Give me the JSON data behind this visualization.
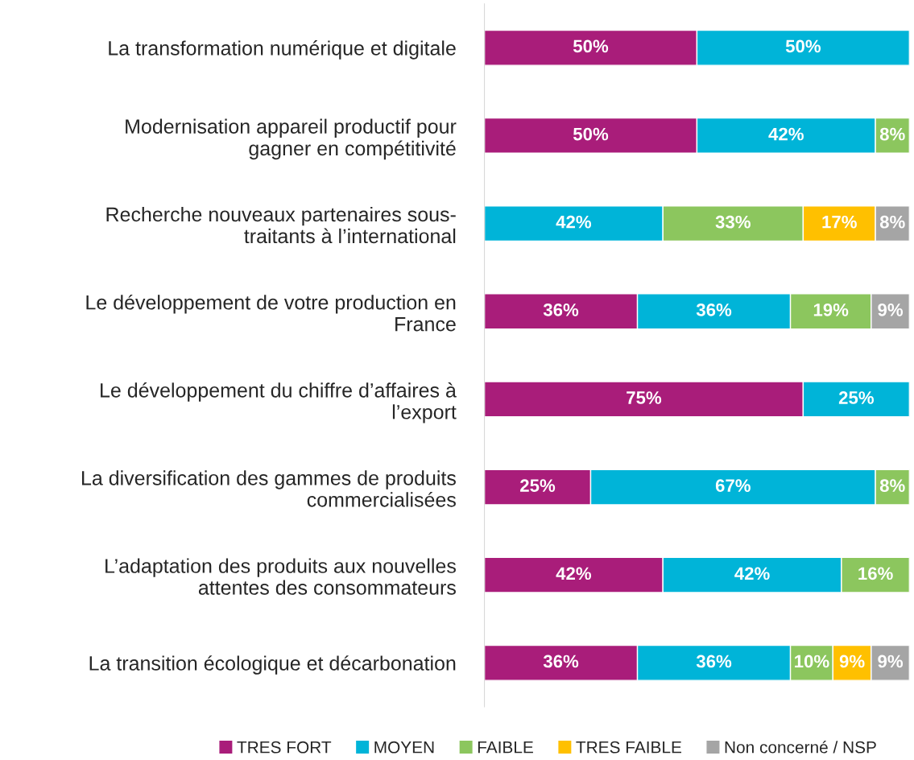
{
  "chart_data": {
    "type": "bar",
    "orientation": "horizontal",
    "stacked": true,
    "categories": [
      "La transformation numérique et digitale",
      "Modernisation appareil productif pour\ngagner en compétitivité",
      "Recherche nouveaux partenaires sous-\ntraitants à l’international",
      "Le développement de votre production en\nFrance",
      "Le développement du chiffre d’affaires à\nl’export",
      "La diversification des gammes de produits\ncommercialisées",
      "L’adaptation des produits aux nouvelles\nattentes des consommateurs",
      "La transition écologique et décarbonation"
    ],
    "series": [
      {
        "name": "TRES FORT",
        "color": "#a91d7a",
        "values": [
          50,
          50,
          null,
          36,
          75,
          25,
          42,
          36
        ],
        "value_labels": [
          "50%",
          "50%",
          null,
          "36%",
          "75%",
          "25%",
          "42%",
          "36%"
        ]
      },
      {
        "name": "MOYEN",
        "color": "#00b4d8",
        "values": [
          50,
          42,
          42,
          36,
          25,
          67,
          42,
          36
        ],
        "value_labels": [
          "50%",
          "42%",
          "42%",
          "36%",
          "25%",
          "67%",
          "42%",
          "36%"
        ]
      },
      {
        "name": "FAIBLE",
        "color": "#8cc65e",
        "values": [
          null,
          8,
          33,
          19,
          null,
          8,
          16,
          10
        ],
        "value_labels": [
          null,
          "8%",
          "33%",
          "19%",
          null,
          "8%",
          "16%",
          "10%"
        ]
      },
      {
        "name": "TRES FAIBLE",
        "color": "#ffc000",
        "values": [
          null,
          null,
          17,
          null,
          null,
          null,
          null,
          9
        ],
        "value_labels": [
          null,
          null,
          "17%",
          null,
          null,
          null,
          null,
          "9%"
        ]
      },
      {
        "name": "Non concerné / NSP",
        "color": "#a5a5a5",
        "values": [
          null,
          null,
          8,
          9,
          null,
          null,
          null,
          9
        ],
        "value_labels": [
          null,
          null,
          "8%",
          "9%",
          null,
          null,
          null,
          "9%"
        ]
      }
    ],
    "xlim": [
      0,
      100
    ],
    "tick_labels": "y",
    "grid": false,
    "legend": "bottom"
  }
}
